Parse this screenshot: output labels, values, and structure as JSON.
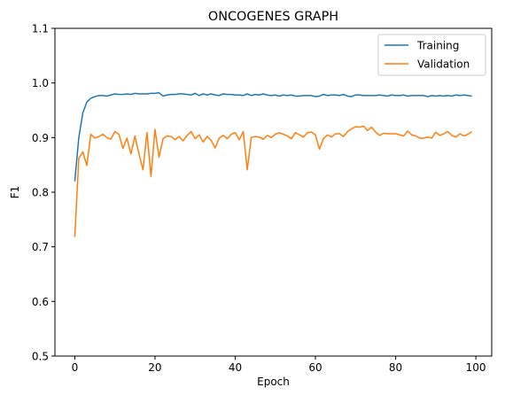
{
  "chart_data": {
    "type": "line",
    "title": "ONCOGENES GRAPH",
    "xlabel": "Epoch",
    "ylabel": "F1",
    "xlim": [
      -4.95,
      103.95
    ],
    "ylim": [
      0.5,
      1.1
    ],
    "xticks": [
      0,
      20,
      40,
      60,
      80,
      100
    ],
    "yticks": [
      0.5,
      0.6,
      0.7,
      0.8,
      0.9,
      1.0,
      1.1
    ],
    "ytick_labels": [
      "0.5",
      "0.6",
      "0.7",
      "0.8",
      "0.9",
      "1.0",
      "1.1"
    ],
    "grid": false,
    "legend_position": "top-right",
    "x": [
      0,
      1,
      2,
      3,
      4,
      5,
      6,
      7,
      8,
      9,
      10,
      11,
      12,
      13,
      14,
      15,
      16,
      17,
      18,
      19,
      20,
      21,
      22,
      23,
      24,
      25,
      26,
      27,
      28,
      29,
      30,
      31,
      32,
      33,
      34,
      35,
      36,
      37,
      38,
      39,
      40,
      41,
      42,
      43,
      44,
      45,
      46,
      47,
      48,
      49,
      50,
      51,
      52,
      53,
      54,
      55,
      56,
      57,
      58,
      59,
      60,
      61,
      62,
      63,
      64,
      65,
      66,
      67,
      68,
      69,
      70,
      71,
      72,
      73,
      74,
      75,
      76,
      77,
      78,
      79,
      80,
      81,
      82,
      83,
      84,
      85,
      86,
      87,
      88,
      89,
      90,
      91,
      92,
      93,
      94,
      95,
      96,
      97,
      98,
      99
    ],
    "series": [
      {
        "name": "Training",
        "color": "#1f77b4",
        "values": [
          0.82,
          0.9,
          0.945,
          0.965,
          0.972,
          0.975,
          0.977,
          0.977,
          0.976,
          0.978,
          0.98,
          0.979,
          0.979,
          0.98,
          0.979,
          0.981,
          0.98,
          0.98,
          0.98,
          0.981,
          0.981,
          0.982,
          0.976,
          0.978,
          0.979,
          0.979,
          0.98,
          0.98,
          0.979,
          0.978,
          0.981,
          0.977,
          0.98,
          0.978,
          0.98,
          0.978,
          0.977,
          0.98,
          0.979,
          0.979,
          0.978,
          0.978,
          0.977,
          0.98,
          0.977,
          0.979,
          0.978,
          0.98,
          0.978,
          0.977,
          0.978,
          0.976,
          0.978,
          0.977,
          0.978,
          0.976,
          0.976,
          0.977,
          0.977,
          0.977,
          0.975,
          0.976,
          0.979,
          0.977,
          0.978,
          0.978,
          0.977,
          0.979,
          0.976,
          0.975,
          0.978,
          0.978,
          0.977,
          0.977,
          0.977,
          0.977,
          0.978,
          0.977,
          0.976,
          0.978,
          0.977,
          0.977,
          0.978,
          0.976,
          0.977,
          0.977,
          0.977,
          0.977,
          0.975,
          0.977,
          0.976,
          0.977,
          0.976,
          0.977,
          0.976,
          0.978,
          0.977,
          0.978,
          0.977,
          0.976
        ]
      },
      {
        "name": "Validation",
        "color": "#ff7f0e",
        "values": [
          0.718,
          0.862,
          0.874,
          0.849,
          0.906,
          0.899,
          0.902,
          0.906,
          0.9,
          0.897,
          0.911,
          0.906,
          0.88,
          0.899,
          0.87,
          0.903,
          0.87,
          0.841,
          0.909,
          0.829,
          0.915,
          0.864,
          0.898,
          0.903,
          0.902,
          0.896,
          0.902,
          0.894,
          0.904,
          0.911,
          0.898,
          0.905,
          0.892,
          0.902,
          0.895,
          0.881,
          0.899,
          0.904,
          0.898,
          0.906,
          0.909,
          0.896,
          0.911,
          0.841,
          0.9,
          0.902,
          0.901,
          0.897,
          0.904,
          0.9,
          0.906,
          0.909,
          0.906,
          0.903,
          0.898,
          0.909,
          0.905,
          0.901,
          0.909,
          0.91,
          0.905,
          0.879,
          0.898,
          0.905,
          0.901,
          0.907,
          0.907,
          0.902,
          0.911,
          0.916,
          0.92,
          0.919,
          0.921,
          0.913,
          0.919,
          0.91,
          0.904,
          0.908,
          0.907,
          0.907,
          0.907,
          0.905,
          0.903,
          0.912,
          0.905,
          0.903,
          0.899,
          0.899,
          0.901,
          0.899,
          0.91,
          0.904,
          0.907,
          0.911,
          0.904,
          0.901,
          0.907,
          0.903,
          0.906,
          0.911
        ]
      }
    ]
  }
}
